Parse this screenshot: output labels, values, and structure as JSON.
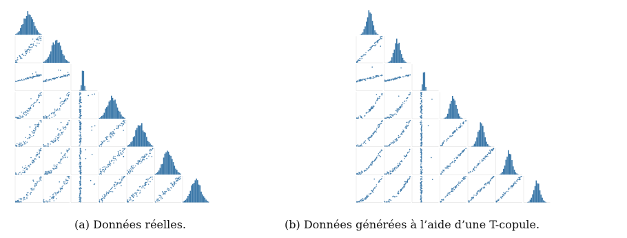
{
  "captions": {
    "a": "(a) Données réelles.",
    "b": "(b) Données générées à l’aide d’une T-copule."
  },
  "colors": {
    "marks": "#3a77a8",
    "grid": "#d9d9d9"
  },
  "chart_data": [
    {
      "type": "scatter",
      "layout": "pairplot-lower-triangle",
      "variables": 7,
      "diagonal": "histogram",
      "caption": "(a) Données réelles.",
      "seed": 11,
      "noise": 0.11,
      "outliers": 3,
      "hist_spread": 1.25
    },
    {
      "type": "scatter",
      "layout": "pairplot-lower-triangle",
      "variables": 7,
      "diagonal": "histogram",
      "caption": "(b) Données générées à l’aide d’une T-copule.",
      "seed": 29,
      "noise": 0.06,
      "outliers": 1,
      "hist_spread": 0.8
    }
  ]
}
